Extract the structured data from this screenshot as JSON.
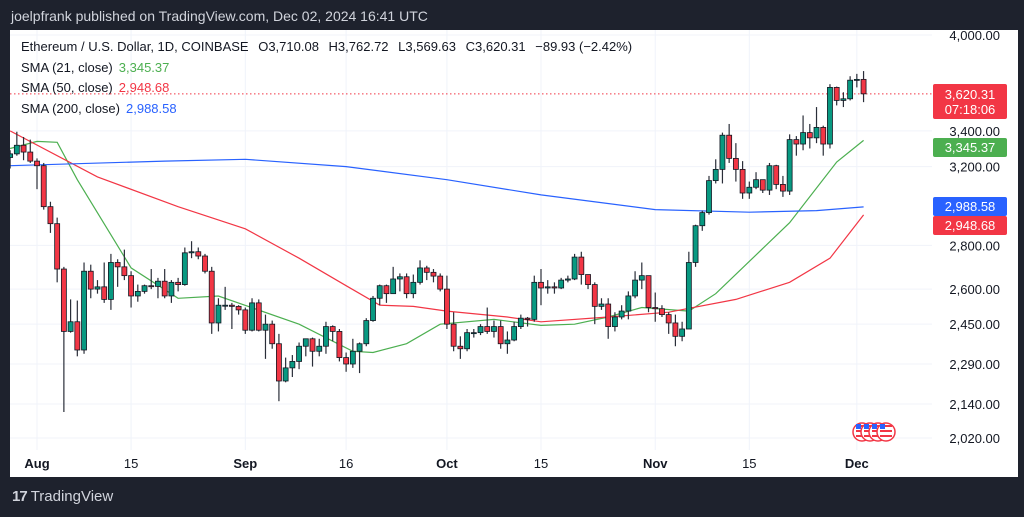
{
  "header": {
    "published": "joelpfrank published on TradingView.com, Dec 02, 2024 16:41 UTC"
  },
  "legend": {
    "symbol": "Ethereum / U.S. Dollar, 1D, COINBASE",
    "open": "O3,710.08",
    "high": "H3,762.72",
    "low": "L3,569.63",
    "close": "C3,620.31",
    "change": "−89.93 (−2.42%)",
    "sma21_label": "SMA (21, close)",
    "sma21_value": "3,345.37",
    "sma50_label": "SMA (50, close)",
    "sma50_value": "2,948.68",
    "sma200_label": "SMA (200, close)",
    "sma200_value": "2,988.58"
  },
  "badges": {
    "price": "3,620.31",
    "countdown": "07:18:06",
    "sma21": "3,345.37",
    "sma200": "2,988.58",
    "sma50": "2,948.68"
  },
  "footer": {
    "brand": "TradingView"
  },
  "colors": {
    "up": "#089981",
    "down": "#f23645",
    "sma21": "#4caf50",
    "sma50": "#f23645",
    "sma200": "#2962ff",
    "background": "#1e222d",
    "grid": "#f0f3fa"
  },
  "icons": {
    "event_markers": "us-flag-icon",
    "logo": "tradingview-logo-icon"
  },
  "chart_data": {
    "type": "candlestick",
    "y_scale": "log",
    "ylim": [
      2020,
      4000
    ],
    "grid": true,
    "y_ticks": [
      4000,
      3400,
      3200,
      2800,
      2600,
      2450,
      2290,
      2140,
      2020
    ],
    "y_tick_labels": [
      "4,000.00",
      "3,400.00",
      "3,200.00",
      "2,800.00",
      "2,600.00",
      "2,450.00",
      "2,290.00",
      "2,140.00",
      "2,020.00"
    ],
    "x_ticks": [
      {
        "date": "2024-08-01",
        "label": "Aug",
        "major": true
      },
      {
        "date": "2024-08-15",
        "label": "15",
        "major": false
      },
      {
        "date": "2024-09-01",
        "label": "Sep",
        "major": true
      },
      {
        "date": "2024-09-16",
        "label": "16",
        "major": false
      },
      {
        "date": "2024-10-01",
        "label": "Oct",
        "major": true
      },
      {
        "date": "2024-10-15",
        "label": "15",
        "major": false
      },
      {
        "date": "2024-11-01",
        "label": "Nov",
        "major": true
      },
      {
        "date": "2024-11-15",
        "label": "15",
        "major": false
      },
      {
        "date": "2024-12-01",
        "label": "Dec",
        "major": true
      }
    ],
    "last_price": 3620.31,
    "candles_ohlc": [
      [
        "2024-07-28",
        3250,
        3290,
        3190,
        3270
      ],
      [
        "2024-07-29",
        3270,
        3395,
        3260,
        3318
      ],
      [
        "2024-07-30",
        3318,
        3365,
        3235,
        3280
      ],
      [
        "2024-07-31",
        3280,
        3350,
        3220,
        3230
      ],
      [
        "2024-08-01",
        3230,
        3245,
        3080,
        3205
      ],
      [
        "2024-08-02",
        3205,
        3220,
        2975,
        2990
      ],
      [
        "2024-08-03",
        2990,
        3015,
        2860,
        2905
      ],
      [
        "2024-08-04",
        2905,
        2935,
        2630,
        2690
      ],
      [
        "2024-08-05",
        2690,
        2700,
        2111,
        2420
      ],
      [
        "2024-08-06",
        2420,
        2555,
        2415,
        2460
      ],
      [
        "2024-08-07",
        2460,
        2550,
        2320,
        2345
      ],
      [
        "2024-08-08",
        2345,
        2720,
        2330,
        2680
      ],
      [
        "2024-08-09",
        2680,
        2710,
        2560,
        2600
      ],
      [
        "2024-08-10",
        2600,
        2640,
        2580,
        2610
      ],
      [
        "2024-08-11",
        2610,
        2720,
        2540,
        2555
      ],
      [
        "2024-08-12",
        2555,
        2760,
        2510,
        2720
      ],
      [
        "2024-08-13",
        2720,
        2735,
        2610,
        2700
      ],
      [
        "2024-08-14",
        2700,
        2780,
        2640,
        2660
      ],
      [
        "2024-08-15",
        2660,
        2680,
        2520,
        2570
      ],
      [
        "2024-08-16",
        2570,
        2620,
        2545,
        2590
      ],
      [
        "2024-08-17",
        2590,
        2620,
        2580,
        2615
      ],
      [
        "2024-08-18",
        2615,
        2690,
        2600,
        2612
      ],
      [
        "2024-08-19",
        2612,
        2650,
        2560,
        2635
      ],
      [
        "2024-08-20",
        2635,
        2690,
        2560,
        2570
      ],
      [
        "2024-08-21",
        2570,
        2640,
        2540,
        2630
      ],
      [
        "2024-08-22",
        2630,
        2650,
        2590,
        2620
      ],
      [
        "2024-08-23",
        2620,
        2790,
        2615,
        2765
      ],
      [
        "2024-08-24",
        2765,
        2820,
        2740,
        2770
      ],
      [
        "2024-08-25",
        2770,
        2790,
        2735,
        2750
      ],
      [
        "2024-08-26",
        2750,
        2760,
        2670,
        2680
      ],
      [
        "2024-08-27",
        2680,
        2700,
        2410,
        2455
      ],
      [
        "2024-08-28",
        2455,
        2560,
        2420,
        2530
      ],
      [
        "2024-08-29",
        2530,
        2610,
        2510,
        2530
      ],
      [
        "2024-08-30",
        2530,
        2540,
        2430,
        2525
      ],
      [
        "2024-08-31",
        2525,
        2530,
        2490,
        2510
      ],
      [
        "2024-09-01",
        2510,
        2520,
        2410,
        2425
      ],
      [
        "2024-09-02",
        2425,
        2560,
        2420,
        2540
      ],
      [
        "2024-09-03",
        2540,
        2555,
        2420,
        2425
      ],
      [
        "2024-09-04",
        2425,
        2490,
        2310,
        2450
      ],
      [
        "2024-09-05",
        2450,
        2465,
        2350,
        2370
      ],
      [
        "2024-09-06",
        2370,
        2410,
        2150,
        2225
      ],
      [
        "2024-09-07",
        2225,
        2315,
        2220,
        2275
      ],
      [
        "2024-09-08",
        2275,
        2325,
        2240,
        2300
      ],
      [
        "2024-09-09",
        2300,
        2375,
        2270,
        2360
      ],
      [
        "2024-09-10",
        2360,
        2390,
        2320,
        2390
      ],
      [
        "2024-09-11",
        2390,
        2395,
        2280,
        2340
      ],
      [
        "2024-09-12",
        2340,
        2390,
        2320,
        2360
      ],
      [
        "2024-09-13",
        2360,
        2460,
        2330,
        2440
      ],
      [
        "2024-09-14",
        2440,
        2445,
        2380,
        2420
      ],
      [
        "2024-09-15",
        2420,
        2430,
        2300,
        2315
      ],
      [
        "2024-09-16",
        2315,
        2335,
        2260,
        2290
      ],
      [
        "2024-09-17",
        2290,
        2390,
        2275,
        2340
      ],
      [
        "2024-09-18",
        2340,
        2375,
        2255,
        2370
      ],
      [
        "2024-09-19",
        2370,
        2475,
        2360,
        2465
      ],
      [
        "2024-09-20",
        2465,
        2570,
        2460,
        2560
      ],
      [
        "2024-09-21",
        2560,
        2620,
        2530,
        2615
      ],
      [
        "2024-09-22",
        2615,
        2620,
        2540,
        2580
      ],
      [
        "2024-09-23",
        2580,
        2700,
        2580,
        2645
      ],
      [
        "2024-09-24",
        2645,
        2670,
        2590,
        2655
      ],
      [
        "2024-09-25",
        2655,
        2670,
        2560,
        2580
      ],
      [
        "2024-09-26",
        2580,
        2665,
        2560,
        2630
      ],
      [
        "2024-09-27",
        2630,
        2730,
        2620,
        2695
      ],
      [
        "2024-09-28",
        2695,
        2705,
        2640,
        2675
      ],
      [
        "2024-09-29",
        2675,
        2690,
        2630,
        2658
      ],
      [
        "2024-09-30",
        2658,
        2670,
        2590,
        2600
      ],
      [
        "2024-10-01",
        2600,
        2660,
        2430,
        2450
      ],
      [
        "2024-10-02",
        2450,
        2500,
        2340,
        2360
      ],
      [
        "2024-10-03",
        2360,
        2400,
        2310,
        2350
      ],
      [
        "2024-10-04",
        2350,
        2430,
        2340,
        2415
      ],
      [
        "2024-10-05",
        2415,
        2430,
        2395,
        2415
      ],
      [
        "2024-10-06",
        2415,
        2450,
        2405,
        2440
      ],
      [
        "2024-10-07",
        2440,
        2520,
        2410,
        2420
      ],
      [
        "2024-10-08",
        2420,
        2465,
        2395,
        2440
      ],
      [
        "2024-10-09",
        2440,
        2465,
        2350,
        2370
      ],
      [
        "2024-10-10",
        2370,
        2420,
        2330,
        2385
      ],
      [
        "2024-10-11",
        2385,
        2460,
        2380,
        2440
      ],
      [
        "2024-10-12",
        2440,
        2490,
        2430,
        2475
      ],
      [
        "2024-10-13",
        2475,
        2480,
        2440,
        2470
      ],
      [
        "2024-10-14",
        2470,
        2660,
        2460,
        2630
      ],
      [
        "2024-10-15",
        2630,
        2690,
        2530,
        2605
      ],
      [
        "2024-10-16",
        2605,
        2640,
        2580,
        2610
      ],
      [
        "2024-10-17",
        2610,
        2630,
        2580,
        2605
      ],
      [
        "2024-10-18",
        2605,
        2650,
        2600,
        2640
      ],
      [
        "2024-10-19",
        2640,
        2660,
        2630,
        2645
      ],
      [
        "2024-10-20",
        2645,
        2760,
        2640,
        2745
      ],
      [
        "2024-10-21",
        2745,
        2770,
        2620,
        2665
      ],
      [
        "2024-10-22",
        2665,
        2665,
        2600,
        2620
      ],
      [
        "2024-10-23",
        2620,
        2630,
        2450,
        2525
      ],
      [
        "2024-10-24",
        2525,
        2560,
        2510,
        2535
      ],
      [
        "2024-10-25",
        2535,
        2560,
        2390,
        2440
      ],
      [
        "2024-10-26",
        2440,
        2500,
        2420,
        2480
      ],
      [
        "2024-10-27",
        2480,
        2530,
        2470,
        2505
      ],
      [
        "2024-10-28",
        2505,
        2590,
        2470,
        2570
      ],
      [
        "2024-10-29",
        2570,
        2680,
        2560,
        2640
      ],
      [
        "2024-10-30",
        2640,
        2720,
        2600,
        2660
      ],
      [
        "2024-10-31",
        2660,
        2660,
        2500,
        2520
      ],
      [
        "2024-11-01",
        2520,
        2585,
        2460,
        2515
      ],
      [
        "2024-11-02",
        2515,
        2530,
        2480,
        2490
      ],
      [
        "2024-11-03",
        2490,
        2500,
        2410,
        2455
      ],
      [
        "2024-11-04",
        2455,
        2490,
        2360,
        2400
      ],
      [
        "2024-11-05",
        2400,
        2460,
        2380,
        2430
      ],
      [
        "2024-11-06",
        2430,
        2770,
        2430,
        2720
      ],
      [
        "2024-11-07",
        2720,
        2900,
        2700,
        2895
      ],
      [
        "2024-11-08",
        2895,
        2970,
        2870,
        2960
      ],
      [
        "2024-11-09",
        2960,
        3150,
        2950,
        3125
      ],
      [
        "2024-11-10",
        3125,
        3240,
        3110,
        3185
      ],
      [
        "2024-11-11",
        3185,
        3390,
        3110,
        3375
      ],
      [
        "2024-11-12",
        3375,
        3440,
        3220,
        3245
      ],
      [
        "2024-11-13",
        3245,
        3330,
        3120,
        3185
      ],
      [
        "2024-11-14",
        3185,
        3230,
        3030,
        3060
      ],
      [
        "2024-11-15",
        3060,
        3120,
        3030,
        3090
      ],
      [
        "2024-11-16",
        3090,
        3170,
        3080,
        3130
      ],
      [
        "2024-11-17",
        3130,
        3130,
        3060,
        3075
      ],
      [
        "2024-11-18",
        3075,
        3220,
        3050,
        3205
      ],
      [
        "2024-11-19",
        3205,
        3210,
        3080,
        3105
      ],
      [
        "2024-11-20",
        3105,
        3150,
        3040,
        3070
      ],
      [
        "2024-11-21",
        3070,
        3380,
        3050,
        3350
      ],
      [
        "2024-11-22",
        3350,
        3370,
        3260,
        3325
      ],
      [
        "2024-11-23",
        3325,
        3490,
        3290,
        3390
      ],
      [
        "2024-11-24",
        3390,
        3440,
        3300,
        3360
      ],
      [
        "2024-11-25",
        3360,
        3540,
        3330,
        3420
      ],
      [
        "2024-11-26",
        3420,
        3430,
        3260,
        3325
      ],
      [
        "2024-11-27",
        3325,
        3680,
        3300,
        3660
      ],
      [
        "2024-11-28",
        3660,
        3665,
        3550,
        3580
      ],
      [
        "2024-11-29",
        3580,
        3630,
        3540,
        3590
      ],
      [
        "2024-11-30",
        3590,
        3730,
        3580,
        3705
      ],
      [
        "2024-12-01",
        3705,
        3745,
        3660,
        3710
      ],
      [
        "2024-12-02",
        3710.08,
        3762.72,
        3569.63,
        3620.31
      ]
    ],
    "series": [
      {
        "name": "SMA (21, close)",
        "color": "#4caf50",
        "points": [
          [
            "2024-07-28",
            3300
          ],
          [
            "2024-08-01",
            3340
          ],
          [
            "2024-08-04",
            3335
          ],
          [
            "2024-08-07",
            3130
          ],
          [
            "2024-08-15",
            2695
          ],
          [
            "2024-08-22",
            2560
          ],
          [
            "2024-08-28",
            2570
          ],
          [
            "2024-09-09",
            2450
          ],
          [
            "2024-09-17",
            2340
          ],
          [
            "2024-09-20",
            2335
          ],
          [
            "2024-09-25",
            2370
          ],
          [
            "2024-09-30",
            2450
          ],
          [
            "2024-10-08",
            2470
          ],
          [
            "2024-10-15",
            2445
          ],
          [
            "2024-10-20",
            2450
          ],
          [
            "2024-10-25",
            2480
          ],
          [
            "2024-10-30",
            2520
          ],
          [
            "2024-11-06",
            2505
          ],
          [
            "2024-11-10",
            2580
          ],
          [
            "2024-11-21",
            2910
          ],
          [
            "2024-11-28",
            3225
          ],
          [
            "2024-12-02",
            3345.37
          ]
        ]
      },
      {
        "name": "SMA (50, close)",
        "color": "#f23645",
        "points": [
          [
            "2024-07-28",
            3400
          ],
          [
            "2024-08-10",
            3145
          ],
          [
            "2024-08-22",
            2990
          ],
          [
            "2024-09-01",
            2880
          ],
          [
            "2024-09-09",
            2740
          ],
          [
            "2024-09-16",
            2615
          ],
          [
            "2024-09-21",
            2530
          ],
          [
            "2024-09-26",
            2525
          ],
          [
            "2024-10-01",
            2505
          ],
          [
            "2024-10-10",
            2480
          ],
          [
            "2024-10-15",
            2460
          ],
          [
            "2024-10-25",
            2480
          ],
          [
            "2024-11-03",
            2500
          ],
          [
            "2024-11-13",
            2555
          ],
          [
            "2024-11-21",
            2630
          ],
          [
            "2024-11-27",
            2740
          ],
          [
            "2024-12-02",
            2948.68
          ]
        ]
      },
      {
        "name": "SMA (200, close)",
        "color": "#2962ff",
        "points": [
          [
            "2024-07-28",
            3205
          ],
          [
            "2024-08-20",
            3230
          ],
          [
            "2024-09-01",
            3240
          ],
          [
            "2024-09-16",
            3200
          ],
          [
            "2024-10-01",
            3130
          ],
          [
            "2024-10-15",
            3050
          ],
          [
            "2024-11-01",
            2975
          ],
          [
            "2024-11-15",
            2962
          ],
          [
            "2024-11-25",
            2970
          ],
          [
            "2024-12-02",
            2988.58
          ]
        ]
      }
    ]
  }
}
